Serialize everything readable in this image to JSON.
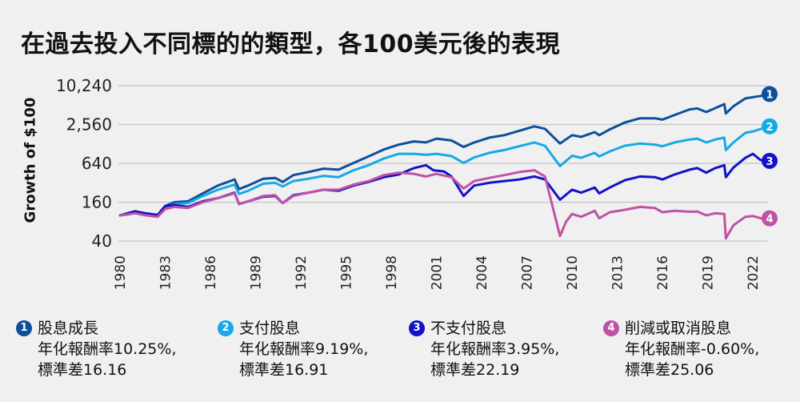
{
  "title": "在過去投入不同標的的類型，各100美元後的表現",
  "chart_data": {
    "type": "line",
    "title": "在過去投入不同標的的類型，各100美元後的表現",
    "ylabel": "Growth of $100",
    "yscale": "log2",
    "ylim": [
      40,
      10240
    ],
    "yticks": [
      {
        "value": 40,
        "label": "40"
      },
      {
        "value": 160,
        "label": "160"
      },
      {
        "value": 640,
        "label": "640"
      },
      {
        "value": 2560,
        "label": "2,560"
      },
      {
        "value": 10240,
        "label": "10,240"
      }
    ],
    "xlim": [
      1980,
      2023
    ],
    "xticks": [
      "1980",
      "1983",
      "1986",
      "1989",
      "1992",
      "1995",
      "1998",
      "2001",
      "2004",
      "2007",
      "2010",
      "2013",
      "2016",
      "2019",
      "2022"
    ],
    "grid": "horizontal",
    "series": [
      {
        "id": 1,
        "badge": "1",
        "color": "#0e4f9c",
        "name": "股息成長",
        "stat1": "年化報酬率10.25%,",
        "stat2": "標準差16.16",
        "points": [
          [
            1980,
            100
          ],
          [
            1980.5,
            105
          ],
          [
            1981,
            112
          ],
          [
            1981.7,
            105
          ],
          [
            1982.5,
            100
          ],
          [
            1983,
            140
          ],
          [
            1983.6,
            160
          ],
          [
            1984.5,
            165
          ],
          [
            1985.5,
            220
          ],
          [
            1986.5,
            290
          ],
          [
            1987.6,
            360
          ],
          [
            1987.9,
            255
          ],
          [
            1988.5,
            290
          ],
          [
            1989.5,
            370
          ],
          [
            1990.3,
            380
          ],
          [
            1990.8,
            330
          ],
          [
            1991.5,
            420
          ],
          [
            1992.5,
            470
          ],
          [
            1993.5,
            530
          ],
          [
            1994.5,
            510
          ],
          [
            1995.5,
            650
          ],
          [
            1996.5,
            820
          ],
          [
            1997.5,
            1050
          ],
          [
            1998.5,
            1250
          ],
          [
            1999.5,
            1400
          ],
          [
            2000.3,
            1350
          ],
          [
            2001,
            1550
          ],
          [
            2002,
            1450
          ],
          [
            2002.8,
            1150
          ],
          [
            2003.5,
            1350
          ],
          [
            2004.5,
            1600
          ],
          [
            2005.5,
            1750
          ],
          [
            2006.5,
            2050
          ],
          [
            2007.5,
            2400
          ],
          [
            2008.2,
            2200
          ],
          [
            2009.2,
            1300
          ],
          [
            2010,
            1750
          ],
          [
            2010.6,
            1650
          ],
          [
            2011.5,
            1950
          ],
          [
            2011.8,
            1750
          ],
          [
            2012.5,
            2150
          ],
          [
            2013.5,
            2750
          ],
          [
            2014.5,
            3200
          ],
          [
            2015.5,
            3200
          ],
          [
            2016,
            3050
          ],
          [
            2016.8,
            3600
          ],
          [
            2017.8,
            4400
          ],
          [
            2018.3,
            4550
          ],
          [
            2018.9,
            4000
          ],
          [
            2019.5,
            4600
          ],
          [
            2020.1,
            5300
          ],
          [
            2020.2,
            3800
          ],
          [
            2020.7,
            4900
          ],
          [
            2021.5,
            6500
          ],
          [
            2022,
            6800
          ],
          [
            2022.7,
            7200
          ],
          [
            2023,
            7600
          ]
        ]
      },
      {
        "id": 2,
        "badge": "2",
        "color": "#16a9e6",
        "name": "支付股息",
        "stat1": "年化報酬率9.19%,",
        "stat2": "標準差16.91",
        "points": [
          [
            1980,
            100
          ],
          [
            1980.5,
            103
          ],
          [
            1981,
            110
          ],
          [
            1981.7,
            102
          ],
          [
            1982.5,
            98
          ],
          [
            1983,
            135
          ],
          [
            1983.6,
            150
          ],
          [
            1984.5,
            155
          ],
          [
            1985.5,
            200
          ],
          [
            1986.5,
            250
          ],
          [
            1987.6,
            300
          ],
          [
            1987.9,
            215
          ],
          [
            1988.5,
            240
          ],
          [
            1989.5,
            310
          ],
          [
            1990.3,
            320
          ],
          [
            1990.8,
            280
          ],
          [
            1991.5,
            340
          ],
          [
            1992.5,
            370
          ],
          [
            1993.5,
            410
          ],
          [
            1994.5,
            390
          ],
          [
            1995.5,
            500
          ],
          [
            1996.5,
            600
          ],
          [
            1997.5,
            760
          ],
          [
            1998.5,
            900
          ],
          [
            1999.5,
            900
          ],
          [
            2000.3,
            870
          ],
          [
            2001,
            900
          ],
          [
            2002,
            830
          ],
          [
            2002.8,
            650
          ],
          [
            2003.5,
            790
          ],
          [
            2004.5,
            930
          ],
          [
            2005.5,
            1030
          ],
          [
            2006.5,
            1180
          ],
          [
            2007.5,
            1350
          ],
          [
            2008.2,
            1200
          ],
          [
            2009.2,
            580
          ],
          [
            2010,
            840
          ],
          [
            2010.6,
            780
          ],
          [
            2011.5,
            930
          ],
          [
            2011.8,
            820
          ],
          [
            2012.5,
            980
          ],
          [
            2013.5,
            1200
          ],
          [
            2014.5,
            1300
          ],
          [
            2015.5,
            1250
          ],
          [
            2016,
            1180
          ],
          [
            2016.8,
            1350
          ],
          [
            2017.8,
            1500
          ],
          [
            2018.3,
            1550
          ],
          [
            2018.9,
            1350
          ],
          [
            2019.5,
            1500
          ],
          [
            2020.1,
            1600
          ],
          [
            2020.2,
            1030
          ],
          [
            2020.7,
            1350
          ],
          [
            2021.5,
            1900
          ],
          [
            2022,
            2000
          ],
          [
            2022.7,
            2250
          ],
          [
            2023,
            2400
          ]
        ]
      },
      {
        "id": 3,
        "badge": "3",
        "color": "#1212c8",
        "name": "不支付股息",
        "stat1": "年化報酬率3.95%,",
        "stat2": "標準差22.19",
        "points": [
          [
            1980,
            100
          ],
          [
            1980.5,
            108
          ],
          [
            1981,
            116
          ],
          [
            1981.7,
            108
          ],
          [
            1982.5,
            102
          ],
          [
            1983,
            140
          ],
          [
            1983.6,
            145
          ],
          [
            1984.5,
            135
          ],
          [
            1985.5,
            165
          ],
          [
            1986.5,
            185
          ],
          [
            1987.6,
            225
          ],
          [
            1987.9,
            150
          ],
          [
            1988.5,
            165
          ],
          [
            1989.5,
            195
          ],
          [
            1990.3,
            200
          ],
          [
            1990.8,
            155
          ],
          [
            1991.5,
            205
          ],
          [
            1992.5,
            225
          ],
          [
            1993.5,
            250
          ],
          [
            1994.5,
            240
          ],
          [
            1995.5,
            290
          ],
          [
            1996.5,
            330
          ],
          [
            1997.5,
            390
          ],
          [
            1998.5,
            430
          ],
          [
            1999.5,
            540
          ],
          [
            2000.3,
            600
          ],
          [
            2000.8,
            500
          ],
          [
            2001.5,
            480
          ],
          [
            2002,
            400
          ],
          [
            2002.8,
            200
          ],
          [
            2003.5,
            290
          ],
          [
            2004.5,
            320
          ],
          [
            2005.5,
            340
          ],
          [
            2006.5,
            360
          ],
          [
            2007.5,
            400
          ],
          [
            2008.2,
            360
          ],
          [
            2009.2,
            175
          ],
          [
            2010,
            250
          ],
          [
            2010.6,
            225
          ],
          [
            2011.5,
            270
          ],
          [
            2011.8,
            220
          ],
          [
            2012.5,
            270
          ],
          [
            2013.5,
            350
          ],
          [
            2014.5,
            400
          ],
          [
            2015.5,
            390
          ],
          [
            2016,
            360
          ],
          [
            2016.8,
            430
          ],
          [
            2017.8,
            510
          ],
          [
            2018.3,
            540
          ],
          [
            2018.9,
            460
          ],
          [
            2019.5,
            540
          ],
          [
            2020.1,
            600
          ],
          [
            2020.2,
            390
          ],
          [
            2020.7,
            550
          ],
          [
            2021.5,
            780
          ],
          [
            2022,
            900
          ],
          [
            2022.5,
            720
          ],
          [
            2023,
            700
          ]
        ]
      },
      {
        "id": 4,
        "badge": "4",
        "color": "#c052a6",
        "name": "削減或取消股息",
        "stat1": "年化報酬率-0.60%,",
        "stat2": "標準差25.06",
        "points": [
          [
            1980,
            100
          ],
          [
            1980.5,
            103
          ],
          [
            1981,
            108
          ],
          [
            1981.7,
            100
          ],
          [
            1982.5,
            95
          ],
          [
            1983,
            125
          ],
          [
            1983.6,
            135
          ],
          [
            1984.5,
            130
          ],
          [
            1985.5,
            160
          ],
          [
            1986.5,
            185
          ],
          [
            1987.6,
            220
          ],
          [
            1987.9,
            150
          ],
          [
            1988.5,
            165
          ],
          [
            1989.5,
            200
          ],
          [
            1990.3,
            205
          ],
          [
            1990.8,
            155
          ],
          [
            1991.5,
            200
          ],
          [
            1992.5,
            225
          ],
          [
            1993.5,
            250
          ],
          [
            1994.5,
            250
          ],
          [
            1995.5,
            300
          ],
          [
            1996.5,
            340
          ],
          [
            1997.5,
            420
          ],
          [
            1998.5,
            460
          ],
          [
            1999.5,
            440
          ],
          [
            2000.3,
            400
          ],
          [
            2001,
            440
          ],
          [
            2002,
            390
          ],
          [
            2002.8,
            260
          ],
          [
            2003.5,
            340
          ],
          [
            2004.5,
            380
          ],
          [
            2005.5,
            420
          ],
          [
            2006.5,
            470
          ],
          [
            2007.5,
            500
          ],
          [
            2008.2,
            400
          ],
          [
            2009.2,
            48
          ],
          [
            2009.6,
            80
          ],
          [
            2010,
            105
          ],
          [
            2010.6,
            95
          ],
          [
            2011.5,
            118
          ],
          [
            2011.8,
            90
          ],
          [
            2012.5,
            112
          ],
          [
            2013.5,
            122
          ],
          [
            2014.5,
            135
          ],
          [
            2015.5,
            130
          ],
          [
            2016,
            112
          ],
          [
            2016.8,
            118
          ],
          [
            2017.8,
            114
          ],
          [
            2018.3,
            115
          ],
          [
            2018.9,
            100
          ],
          [
            2019.5,
            108
          ],
          [
            2020.1,
            105
          ],
          [
            2020.2,
            44
          ],
          [
            2020.7,
            70
          ],
          [
            2021.5,
            95
          ],
          [
            2022,
            98
          ],
          [
            2022.5,
            90
          ],
          [
            2023,
            90
          ]
        ]
      }
    ]
  }
}
